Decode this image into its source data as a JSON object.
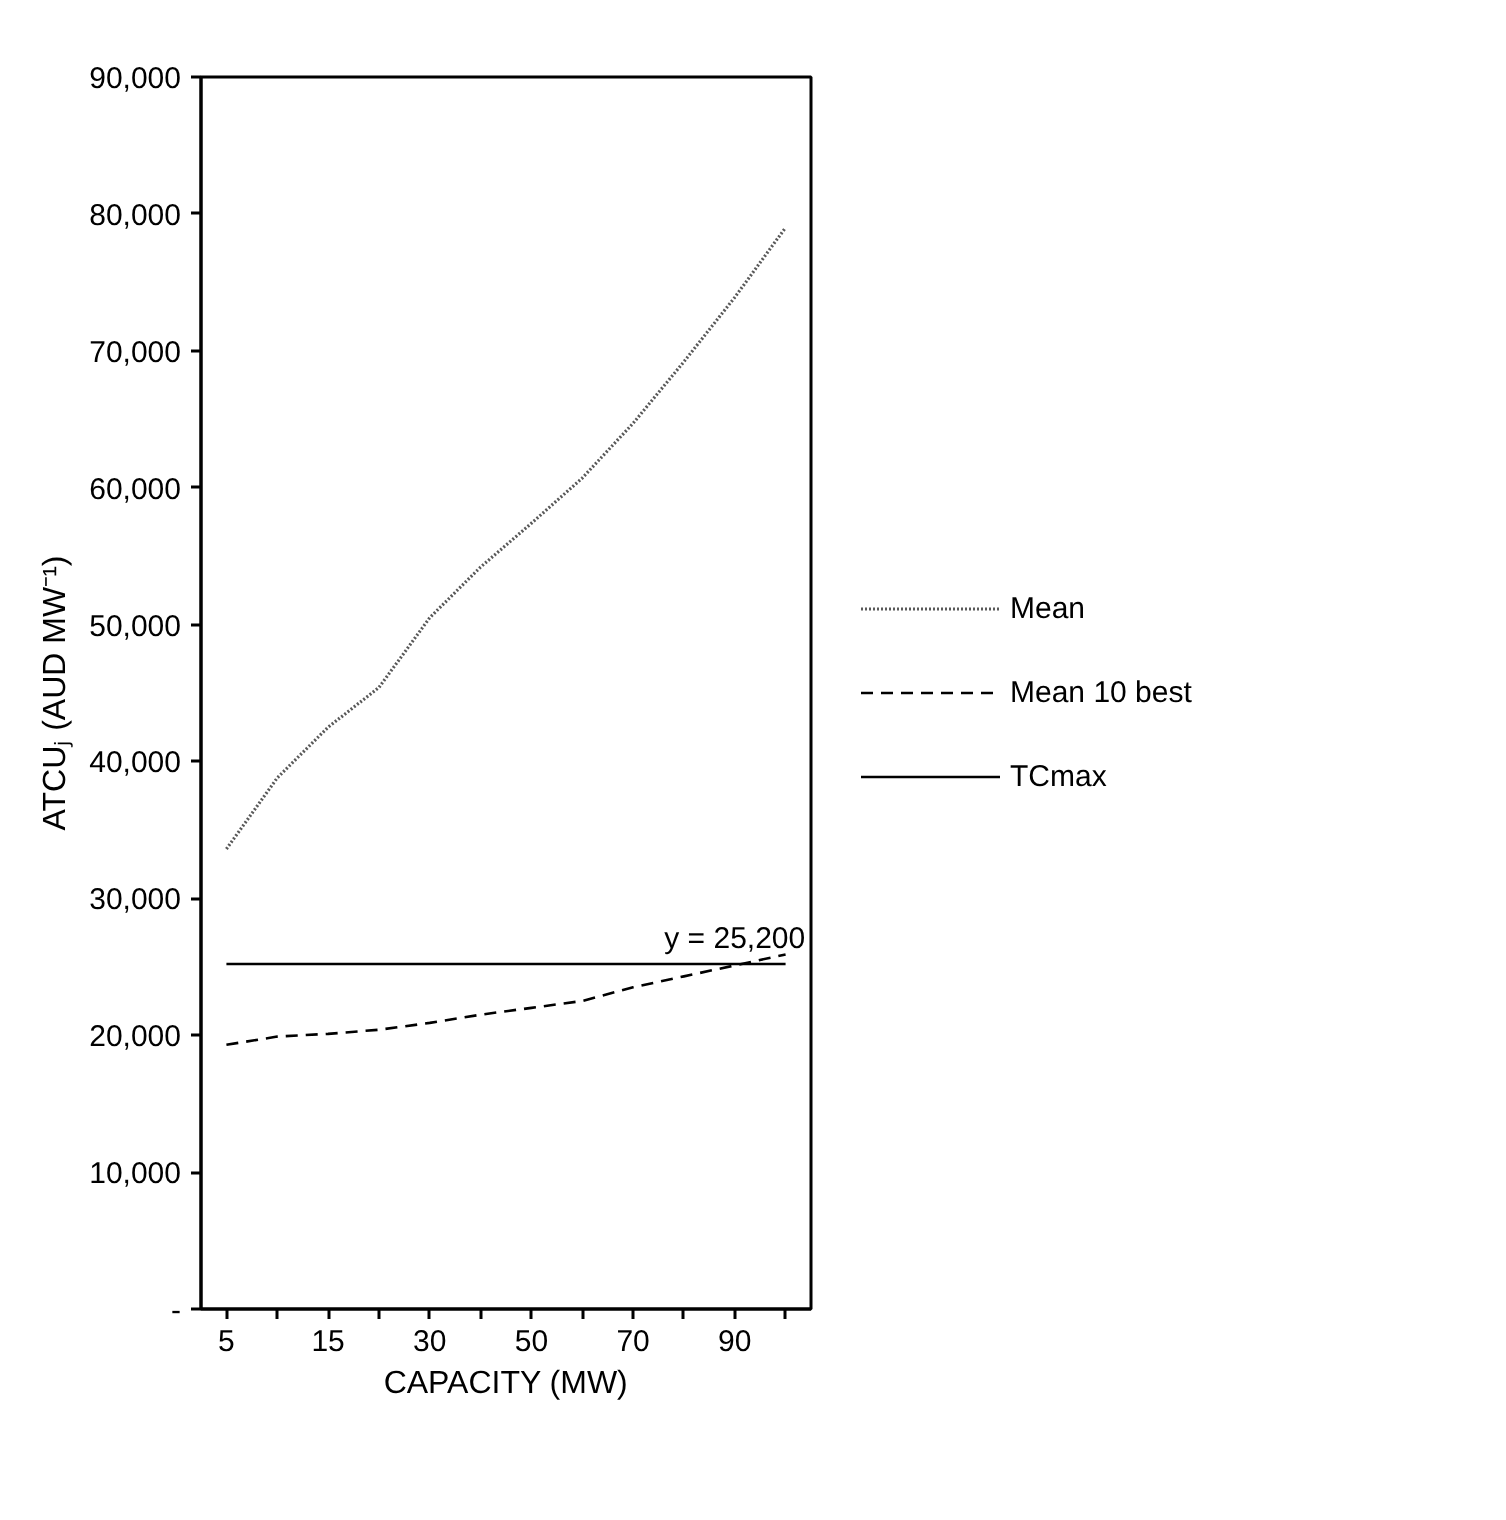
{
  "chart_data": {
    "type": "line",
    "xlabel": "CAPACITY (MW)",
    "ylabel": "ATCUⱼ (AUD MW⁻¹)",
    "categories": [
      "5",
      null,
      "15",
      null,
      "30",
      null,
      "50",
      null,
      "70",
      null,
      "90",
      null
    ],
    "series": [
      {
        "name": "Mean",
        "color": "#595959",
        "line_style": "dotted",
        "values": [
          33600,
          38800,
          42500,
          45400,
          50500,
          54200,
          57400,
          60700,
          64700,
          69200,
          73900,
          79000
        ]
      },
      {
        "name": "Mean 10 best",
        "color": "#000000",
        "line_style": "dashed",
        "values": [
          19300,
          19900,
          20100,
          20400,
          20900,
          21500,
          22000,
          22500,
          23500,
          24300,
          25100,
          25900
        ]
      },
      {
        "name": "TCmax",
        "color": "#000000",
        "line_style": "solid",
        "values": [
          25200,
          25200,
          25200,
          25200,
          25200,
          25200,
          25200,
          25200,
          25200,
          25200,
          25200,
          25200
        ]
      }
    ],
    "annotations": [
      {
        "text": "y = 25,200",
        "x": "90",
        "y": 25200
      }
    ],
    "ylim": [
      0,
      90000
    ],
    "yticks": [
      {
        "value": 0,
        "label": "-"
      },
      {
        "value": 10000,
        "label": "10,000"
      },
      {
        "value": 20000,
        "label": "20,000"
      },
      {
        "value": 30000,
        "label": "30,000"
      },
      {
        "value": 40000,
        "label": "40,000"
      },
      {
        "value": 50000,
        "label": "50,000"
      },
      {
        "value": 60000,
        "label": "60,000"
      },
      {
        "value": 70000,
        "label": "70,000"
      },
      {
        "value": 80000,
        "label": "80,000"
      },
      {
        "value": 90000,
        "label": "90,000"
      }
    ],
    "grid": false,
    "legend": "right",
    "marker": "none"
  }
}
